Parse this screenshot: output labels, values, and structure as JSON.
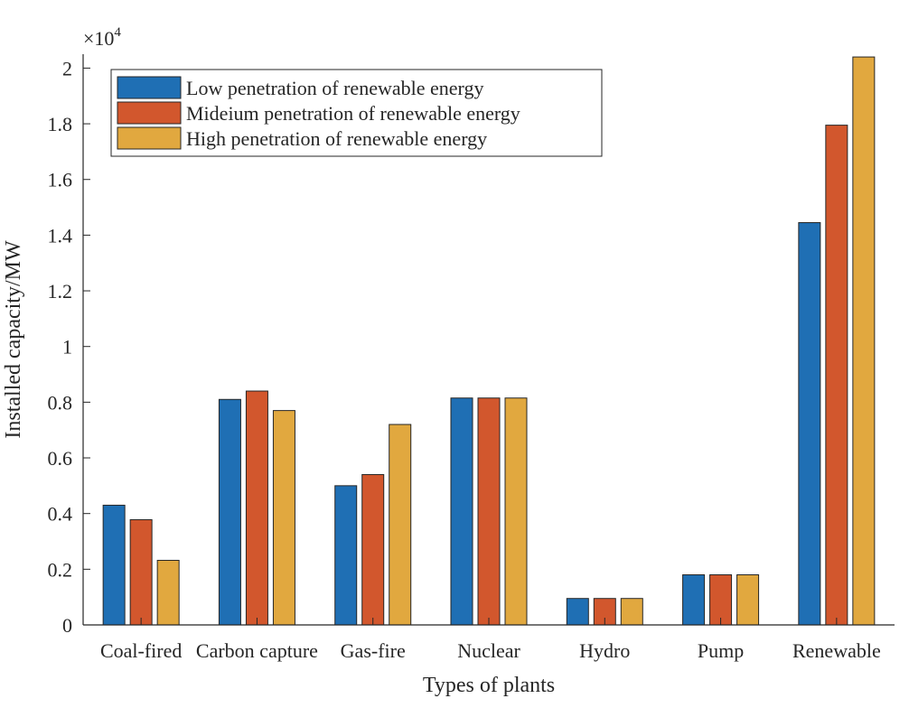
{
  "chart_data": {
    "type": "bar",
    "title": "",
    "xlabel": "Types of plants",
    "ylabel": "Installed capacity/MW",
    "exponent_label": "×10",
    "exponent_power": "4",
    "ylim": [
      0,
      2.05
    ],
    "yticks": [
      0,
      0.2,
      0.4,
      0.6,
      0.8,
      1,
      1.2,
      1.4,
      1.6,
      1.8,
      2
    ],
    "ytick_labels": [
      "0",
      "0.2",
      "0.4",
      "0.6",
      "0.8",
      "1",
      "1.2",
      "1.4",
      "1.6",
      "1.8",
      "2"
    ],
    "categories": [
      "Coal-fired",
      "Carbon capture",
      "Gas-fire",
      "Nuclear",
      "Hydro",
      "Pump",
      "Renewable"
    ],
    "series": [
      {
        "name": "Low penetration of renewable energy",
        "color": "#1f6fb4",
        "values": [
          0.43,
          0.81,
          0.5,
          0.815,
          0.095,
          0.18,
          1.445
        ]
      },
      {
        "name": "Mideium penetration of renewable energy",
        "color": "#d2572d",
        "values": [
          0.378,
          0.84,
          0.54,
          0.815,
          0.095,
          0.18,
          1.795
        ]
      },
      {
        "name": "High penetration of renewable energy",
        "color": "#e1a83f",
        "values": [
          0.232,
          0.77,
          0.72,
          0.815,
          0.095,
          0.18,
          2.04
        ]
      }
    ],
    "legend_position": "top-left",
    "grid": false
  }
}
